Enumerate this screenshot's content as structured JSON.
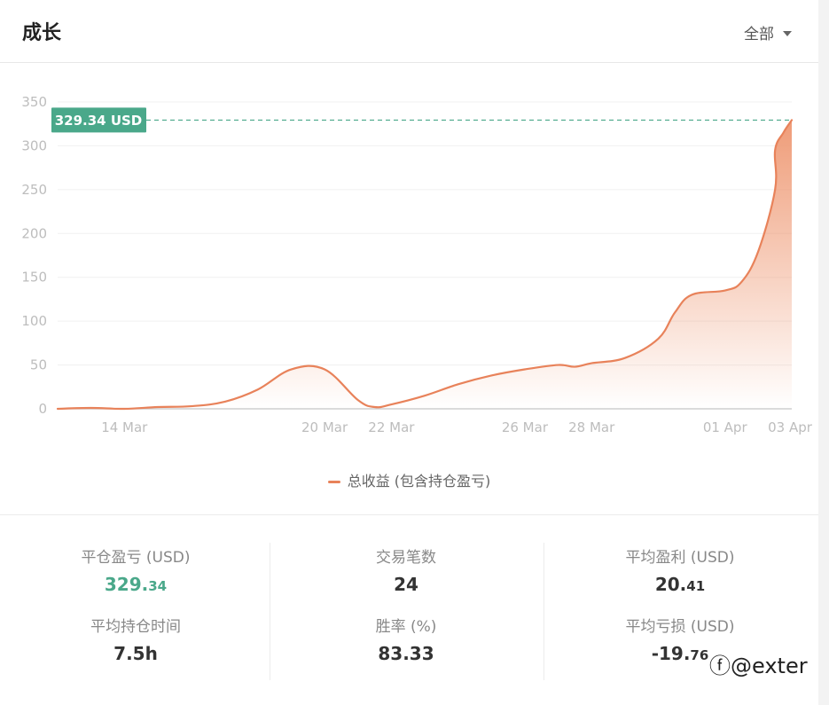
{
  "header": {
    "title": "成长",
    "filter_label": "全部"
  },
  "chart_data": {
    "type": "area",
    "x_ticks": [
      "14 Mar",
      "20 Mar",
      "22 Mar",
      "26 Mar",
      "28 Mar",
      "01 Apr",
      "03 Apr"
    ],
    "y_ticks": [
      0,
      50,
      100,
      150,
      200,
      250,
      300,
      350
    ],
    "ylim": [
      0,
      350
    ],
    "series": [
      {
        "name": "总收益 (包含持仓盈亏)",
        "color": "#e8825a",
        "points": [
          [
            "12 Mar",
            0
          ],
          [
            "13 Mar",
            1
          ],
          [
            "14 Mar",
            0
          ],
          [
            "15 Mar",
            2
          ],
          [
            "16 Mar",
            3
          ],
          [
            "17 Mar",
            8
          ],
          [
            "18 Mar",
            22
          ],
          [
            "19 Mar",
            45
          ],
          [
            "20 Mar",
            45
          ],
          [
            "21 Mar",
            10
          ],
          [
            "21 Mar",
            2
          ],
          [
            "22 Mar",
            5
          ],
          [
            "23 Mar",
            15
          ],
          [
            "24 Mar",
            28
          ],
          [
            "25 Mar",
            38
          ],
          [
            "26 Mar",
            45
          ],
          [
            "27 Mar",
            50
          ],
          [
            "27 Mar",
            48
          ],
          [
            "28 Mar",
            52
          ],
          [
            "29 Mar",
            58
          ],
          [
            "30 Mar",
            80
          ],
          [
            "30 Mar",
            110
          ],
          [
            "31 Mar",
            130
          ],
          [
            "01 Apr",
            135
          ],
          [
            "01 Apr",
            145
          ],
          [
            "02 Apr",
            180
          ],
          [
            "02 Apr",
            250
          ],
          [
            "03 Apr",
            295
          ],
          [
            "03 Apr",
            315
          ],
          [
            "03 Apr",
            329.34
          ]
        ]
      }
    ],
    "last_value_label": "329.34 USD",
    "grid": true
  },
  "legend": {
    "label": "总收益 (包含持仓盈亏)"
  },
  "stats": {
    "closed_pnl": {
      "label": "平仓盈亏 (USD)",
      "int": "329.",
      "dec": "34"
    },
    "trades": {
      "label": "交易笔数",
      "value": "24"
    },
    "avg_profit": {
      "label": "平均盈利 (USD)",
      "int": "20.",
      "dec": "41"
    },
    "avg_hold": {
      "label": "平均持仓时间",
      "value": "7.5h"
    },
    "win_rate": {
      "label": "胜率 (%)",
      "value": "83.33"
    },
    "avg_loss": {
      "label": "平均亏损 (USD)",
      "int": "-19.",
      "dec": "76"
    }
  },
  "watermark": "@exter"
}
